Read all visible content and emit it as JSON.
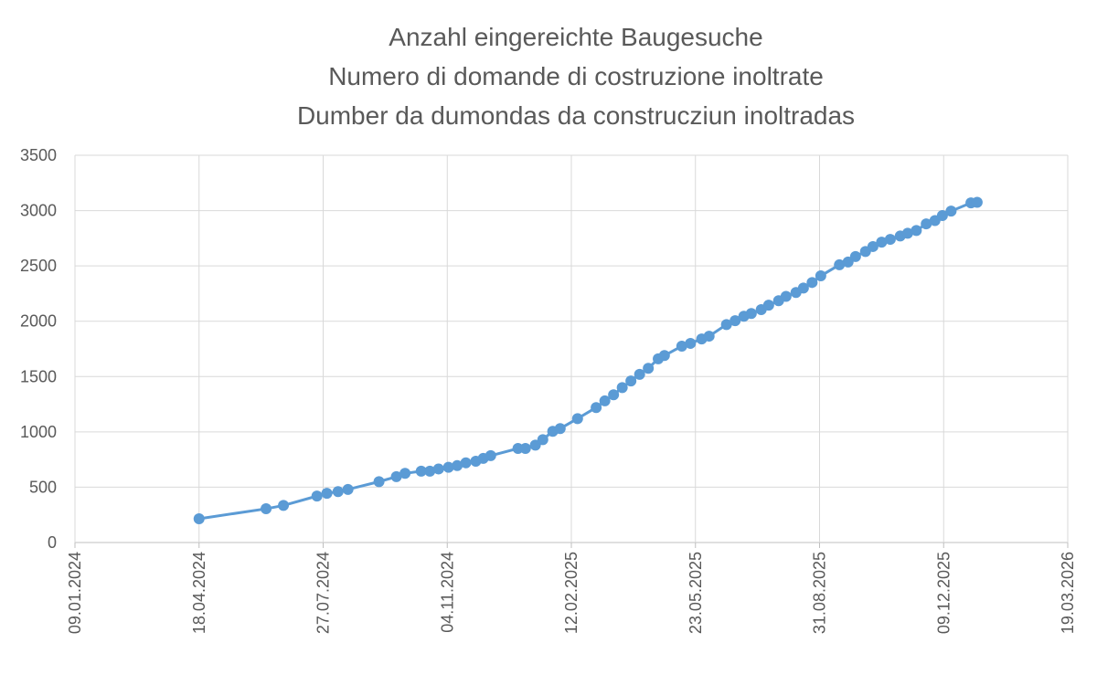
{
  "chart_data": {
    "type": "line",
    "title": [
      "Anzahl eingereichte Baugesuche",
      "Numero di domande di costruzione inoltrate",
      "Dumber da dumondas da construcziun inoltradas"
    ],
    "x": [
      "18.04.2024",
      "11.06.2024",
      "25.06.2024",
      "22.07.2024",
      "30.07.2024",
      "08.08.2024",
      "16.08.2024",
      "10.09.2024",
      "24.09.2024",
      "01.10.2024",
      "14.10.2024",
      "21.10.2024",
      "28.10.2024",
      "05.11.2024",
      "12.11.2024",
      "19.11.2024",
      "27.11.2024",
      "03.12.2024",
      "09.12.2024",
      "31.12.2024",
      "06.01.2025",
      "14.01.2025",
      "20.01.2025",
      "28.01.2025",
      "03.02.2025",
      "17.02.2025",
      "04.03.2025",
      "11.03.2025",
      "18.03.2025",
      "25.03.2025",
      "01.04.2025",
      "08.04.2025",
      "15.04.2025",
      "23.04.2025",
      "28.04.2025",
      "12.05.2025",
      "19.05.2025",
      "28.05.2025",
      "03.06.2025",
      "17.06.2025",
      "24.06.2025",
      "01.07.2025",
      "07.07.2025",
      "15.07.2025",
      "21.07.2025",
      "29.07.2025",
      "04.08.2025",
      "12.08.2025",
      "18.08.2025",
      "25.08.2025",
      "01.09.2025",
      "16.09.2025",
      "23.09.2025",
      "29.09.2025",
      "07.10.2025",
      "13.10.2025",
      "20.10.2025",
      "27.10.2025",
      "04.11.2025",
      "10.11.2025",
      "17.11.2025",
      "25.11.2025",
      "02.12.2025",
      "08.12.2025",
      "15.12.2025",
      "31.12.2025",
      "05.01.2026"
    ],
    "series": [
      {
        "color": "#5b9bd5",
        "values": [
          215,
          305,
          335,
          420,
          445,
          460,
          480,
          550,
          595,
          625,
          645,
          645,
          665,
          680,
          695,
          720,
          735,
          760,
          785,
          850,
          850,
          880,
          930,
          1005,
          1030,
          1120,
          1220,
          1280,
          1335,
          1400,
          1460,
          1520,
          1575,
          1660,
          1690,
          1775,
          1800,
          1840,
          1865,
          1970,
          2005,
          2045,
          2070,
          2105,
          2145,
          2185,
          2225,
          2260,
          2300,
          2350,
          2410,
          2510,
          2535,
          2585,
          2630,
          2675,
          2715,
          2740,
          2770,
          2795,
          2820,
          2880,
          2910,
          2955,
          2995,
          3070,
          3075
        ]
      }
    ],
    "xlim": [
      "09.01.2024",
      "19.03.2026"
    ],
    "xticks": [
      "09.01.2024",
      "18.04.2024",
      "27.07.2024",
      "04.11.2024",
      "12.02.2025",
      "23.05.2025",
      "31.08.2025",
      "09.12.2025",
      "19.03.2026"
    ],
    "ylim": [
      0,
      3500
    ],
    "yticks": [
      0,
      500,
      1000,
      1500,
      2000,
      2500,
      3000,
      3500
    ],
    "grid": true
  }
}
